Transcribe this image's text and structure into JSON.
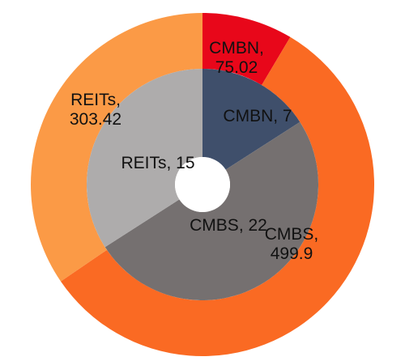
{
  "chart_data": {
    "type": "pie",
    "variant": "nested-donut",
    "rings": [
      {
        "name": "outer",
        "slices": [
          {
            "label_lines": [
              "CMBN,",
              "75.02"
            ],
            "value": 75.02,
            "color": "#e8071a"
          },
          {
            "label_lines": [
              "CMBS,",
              "499.9"
            ],
            "value": 499.9,
            "color": "#fa6a23"
          },
          {
            "label_lines": [
              "REITs,",
              "303.42"
            ],
            "value": 303.42,
            "color": "#fb9a46"
          }
        ]
      },
      {
        "name": "inner",
        "slices": [
          {
            "label_lines": [
              "CMBN, 7"
            ],
            "value": 7,
            "color": "#3f4f6b"
          },
          {
            "label_lines": [
              "CMBS, 22"
            ],
            "value": 22,
            "color": "#757070"
          },
          {
            "label_lines": [
              "REITs, 15"
            ],
            "value": 15,
            "color": "#aeacac"
          }
        ]
      }
    ],
    "title": "",
    "legend": "none"
  }
}
